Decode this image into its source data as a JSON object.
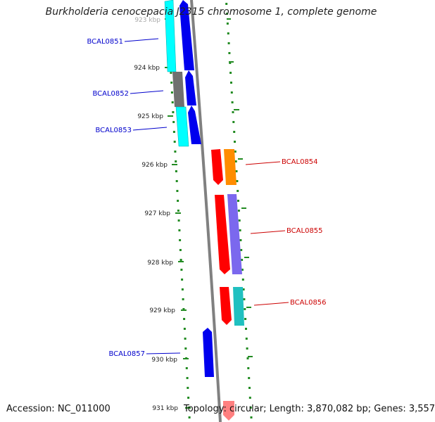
{
  "title": "Burkholderia cenocepacia J2315 chromosome 1, complete genome",
  "accession": "Accession: NC_011000",
  "summary": "Topology: circular; Length: 3,870,082 bp; Genes: 3,557",
  "colors": {
    "backbone": "#808080",
    "tick": "#228B22",
    "label_left": "#0000cc",
    "label_right": "#cc0000"
  },
  "ruler": [
    {
      "label": "923 kbp",
      "kbp": 923
    },
    {
      "label": "924 kbp",
      "kbp": 924
    },
    {
      "label": "925 kbp",
      "kbp": 925
    },
    {
      "label": "926 kbp",
      "kbp": 926
    },
    {
      "label": "927 kbp",
      "kbp": 927
    },
    {
      "label": "928 kbp",
      "kbp": 928
    },
    {
      "label": "929 kbp",
      "kbp": 929
    },
    {
      "label": "930 kbp",
      "kbp": 930
    },
    {
      "label": "931 kbp",
      "kbp": 931
    }
  ],
  "genes": [
    {
      "label": "BCAL0851",
      "strand": "forward"
    },
    {
      "label": "BCAL0852",
      "strand": "forward"
    },
    {
      "label": "BCAL0853",
      "strand": "forward"
    },
    {
      "label": "BCAL0854",
      "strand": "reverse"
    },
    {
      "label": "BCAL0855",
      "strand": "reverse"
    },
    {
      "label": "BCAL0856",
      "strand": "reverse"
    },
    {
      "label": "BCAL0857",
      "strand": "forward"
    }
  ]
}
